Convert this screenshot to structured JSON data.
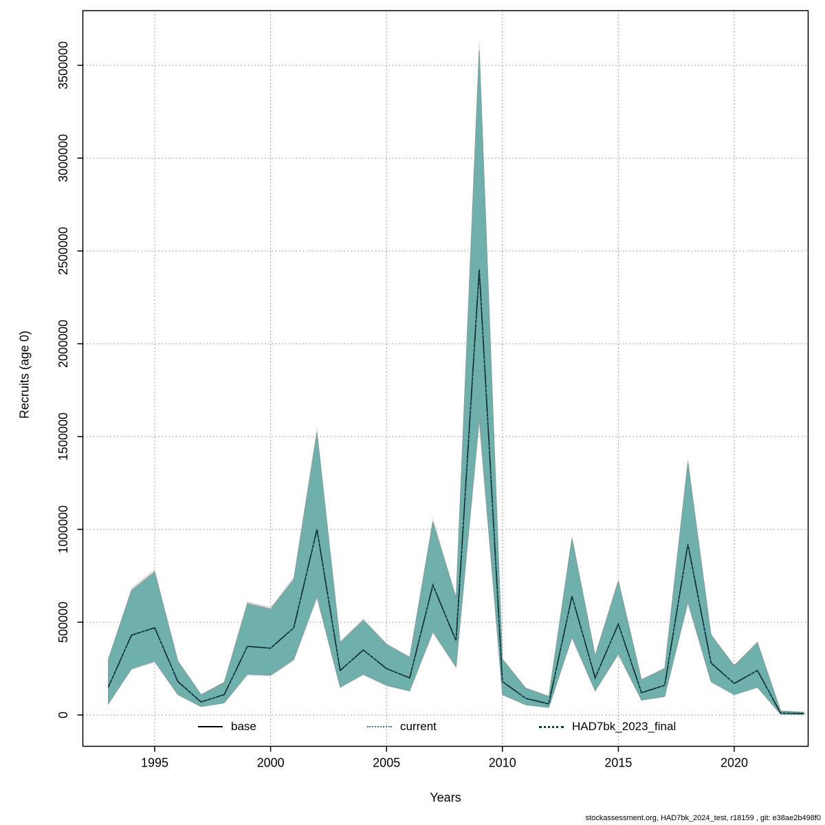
{
  "page": {
    "background": "#ffffff"
  },
  "footer": {
    "text": "stockassessment.org, HAD7bk_2024_test, r18159 , git: e38ae2b498f0"
  },
  "chart_data": {
    "type": "line",
    "title": "",
    "xlabel": "Years",
    "ylabel": "Recruits (age 0)",
    "x_ticks": [
      1995,
      2000,
      2005,
      2010,
      2015,
      2020
    ],
    "y_ticks": [
      0,
      500000,
      1000000,
      1500000,
      2000000,
      2500000,
      3000000,
      3500000
    ],
    "xlim": [
      1991.9,
      2023.2
    ],
    "ylim": [
      -160000,
      3800000
    ],
    "grid": "dotted",
    "legend_position": "bottom-inside",
    "band_color": "#6fafac",
    "outer_band_color": "#bdbdbd",
    "x": [
      1993,
      1994,
      1995,
      1996,
      1997,
      1998,
      1999,
      2000,
      2001,
      2002,
      2003,
      2004,
      2005,
      2006,
      2007,
      2008,
      2009,
      2010,
      2011,
      2012,
      2013,
      2014,
      2015,
      2016,
      2017,
      2018,
      2019,
      2020,
      2021,
      2022,
      2023
    ],
    "estimate": [
      150000,
      430000,
      470000,
      180000,
      70000,
      110000,
      370000,
      360000,
      470000,
      1000000,
      240000,
      350000,
      250000,
      200000,
      700000,
      400000,
      2400000,
      180000,
      90000,
      60000,
      640000,
      200000,
      490000,
      120000,
      160000,
      920000,
      280000,
      170000,
      240000,
      10000,
      8000
    ],
    "band_lower": [
      60000,
      250000,
      290000,
      110000,
      45000,
      65000,
      220000,
      215000,
      300000,
      640000,
      150000,
      220000,
      160000,
      130000,
      450000,
      260000,
      1600000,
      110000,
      55000,
      40000,
      420000,
      130000,
      330000,
      80000,
      100000,
      610000,
      180000,
      110000,
      150000,
      4000,
      3000
    ],
    "band_upper": [
      300000,
      670000,
      770000,
      290000,
      110000,
      175000,
      600000,
      570000,
      730000,
      1520000,
      390000,
      510000,
      380000,
      310000,
      1040000,
      630000,
      3580000,
      300000,
      145000,
      100000,
      950000,
      320000,
      720000,
      190000,
      250000,
      1360000,
      430000,
      265000,
      390000,
      22000,
      15000
    ],
    "series": [
      {
        "name": "base",
        "line": "solid",
        "color": "#000000",
        "width": 1.3,
        "dash": ""
      },
      {
        "name": "current",
        "line": "dotted",
        "color": "#3f72a3",
        "width": 1.6,
        "dash": "2 4"
      },
      {
        "name": "HAD7bk_2023_final",
        "line": "dotted",
        "color": "#0d403c",
        "width": 1.9,
        "dash": "4 3"
      }
    ]
  }
}
